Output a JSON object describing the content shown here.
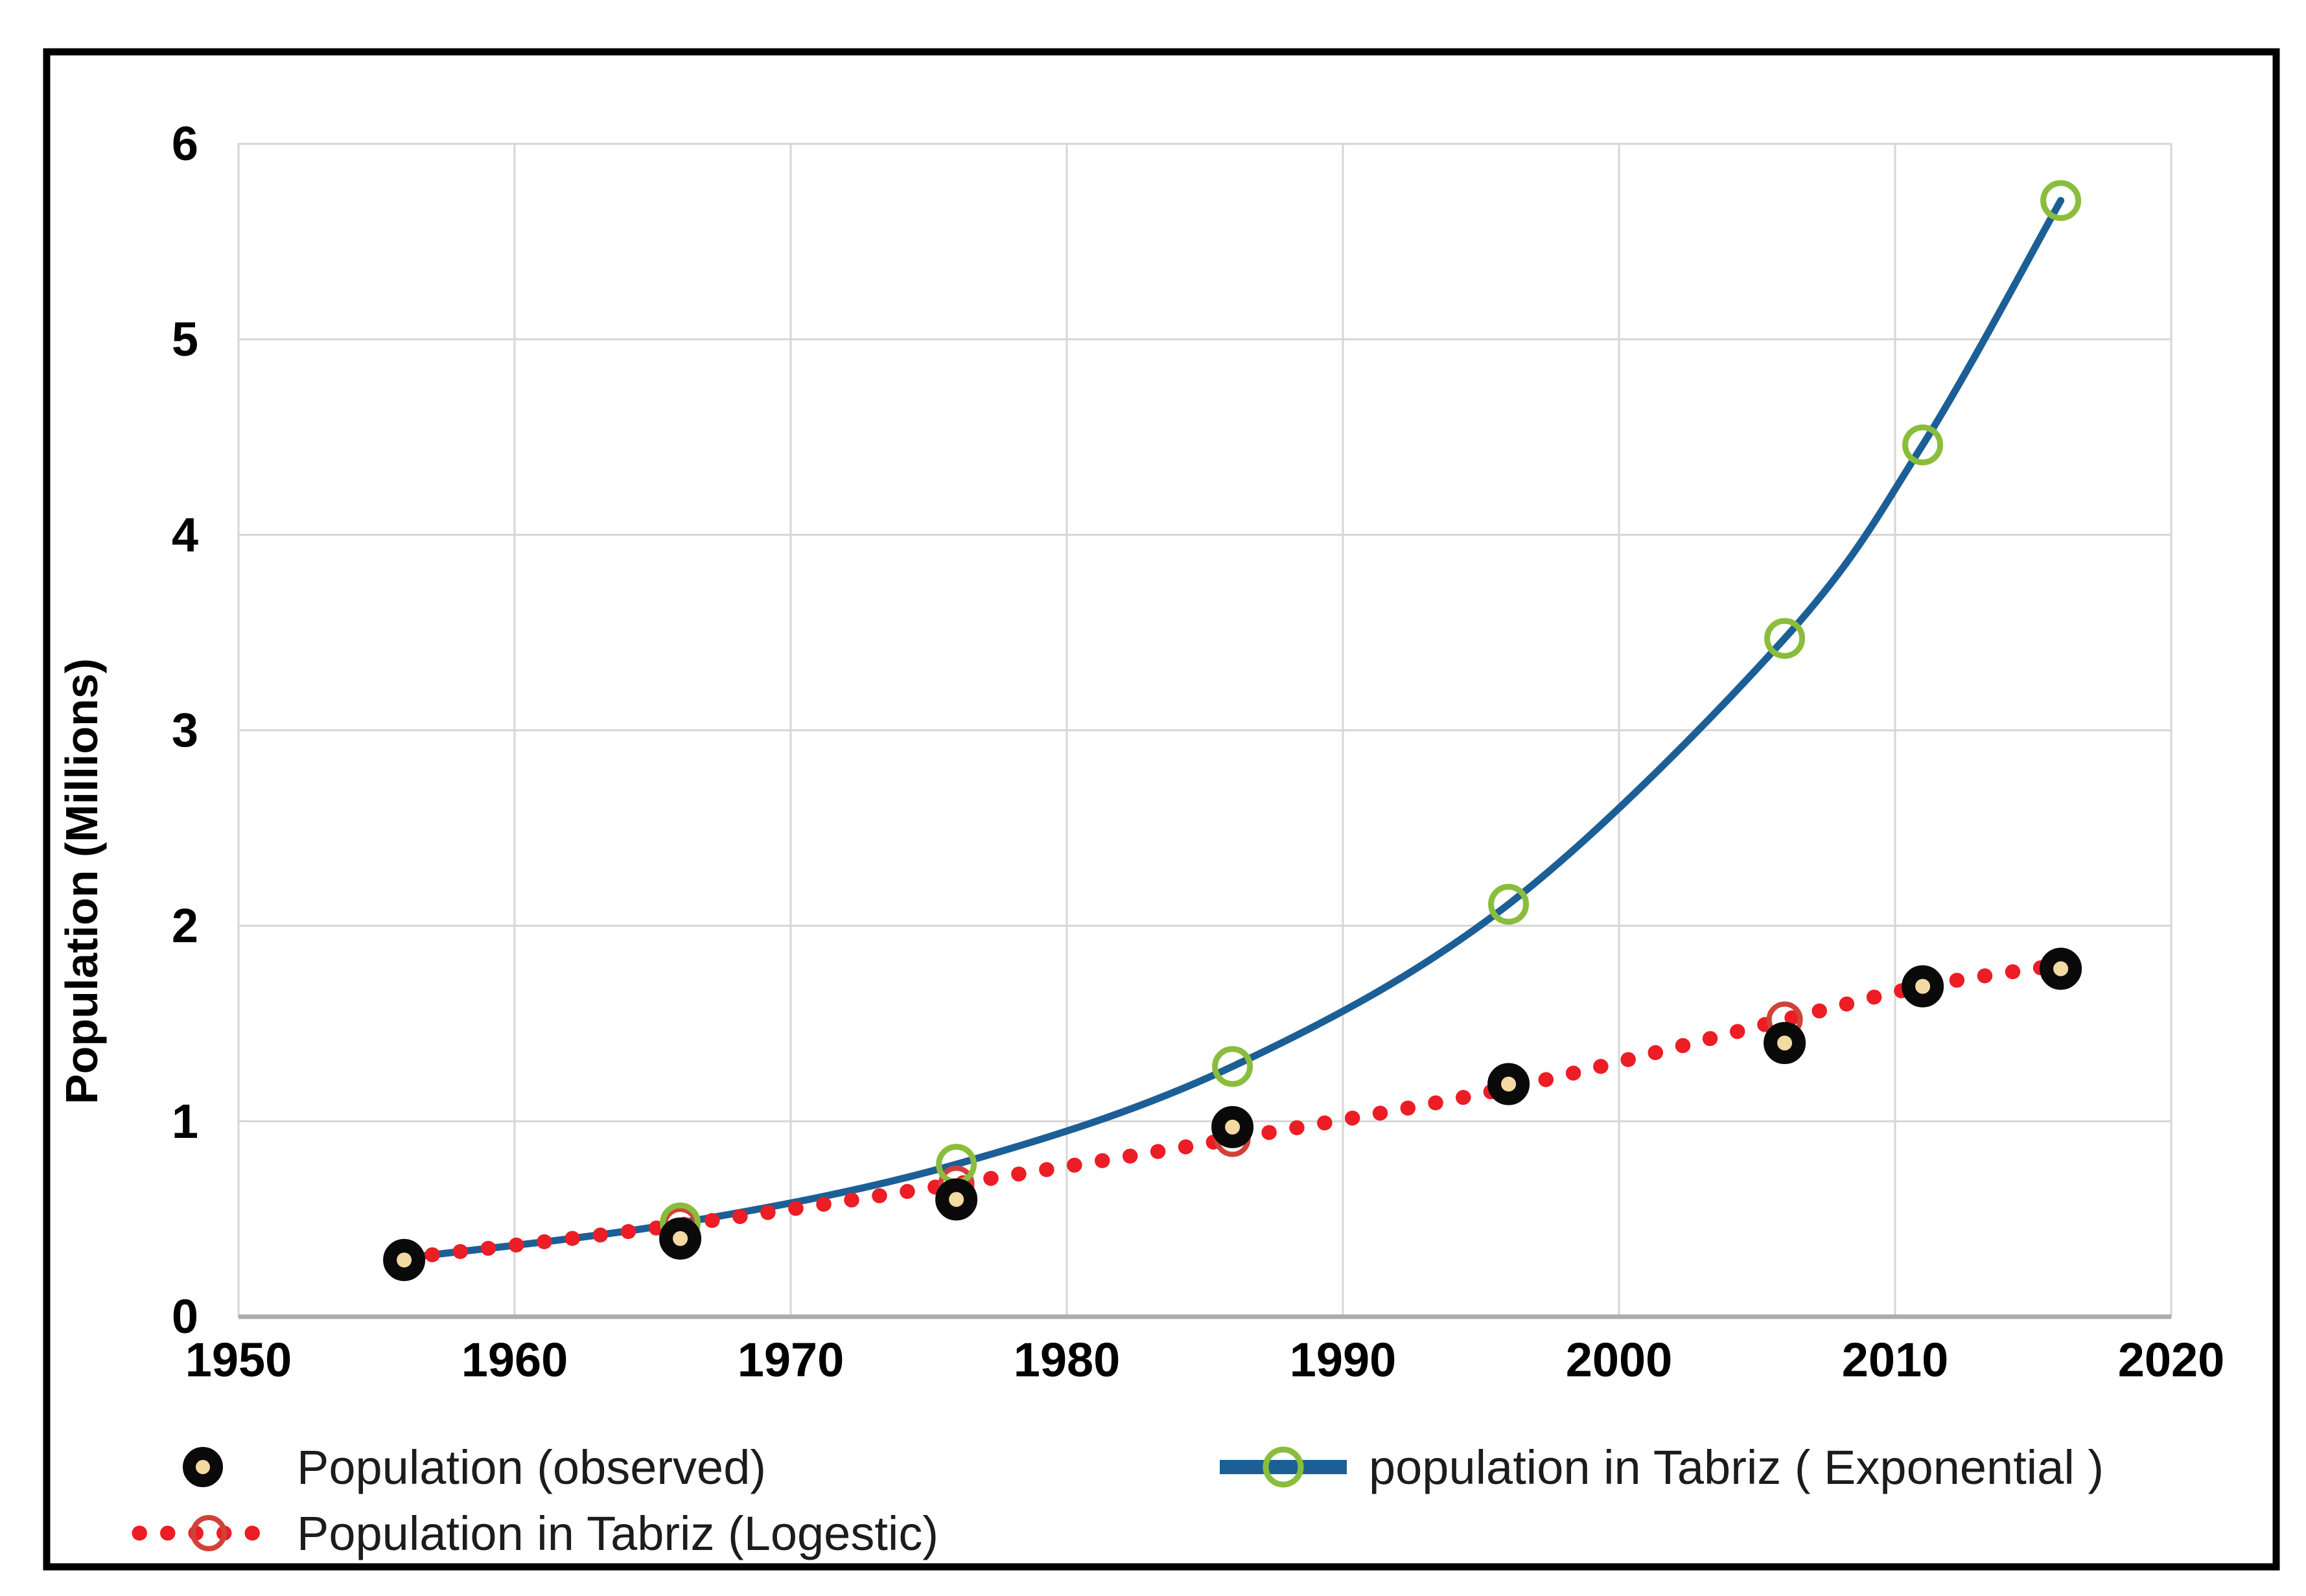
{
  "chart_data": {
    "type": "line",
    "title": "",
    "xlabel": "",
    "ylabel": "Population (Millions)",
    "xlim": [
      1950,
      2020
    ],
    "ylim": [
      0,
      6
    ],
    "grid": true,
    "legend_position": "bottom",
    "x_tick_labels": [
      "1950",
      "1960",
      "1970",
      "1980",
      "1990",
      "2000",
      "2010",
      "2020"
    ],
    "y_tick_labels": [
      "0",
      "1",
      "2",
      "3",
      "4",
      "5",
      "6"
    ],
    "x": [
      1956,
      1966,
      1976,
      1986,
      1996,
      2006,
      2011,
      2016
    ],
    "series": [
      {
        "name": "Population (observed)",
        "type": "scatter",
        "values": [
          0.29,
          0.4,
          0.6,
          0.97,
          1.19,
          1.4,
          1.69,
          1.78
        ],
        "marker": "filled-ring",
        "marker_ring_color": "#0a0a0a",
        "marker_fill_color": "#F3D9A2"
      },
      {
        "name": "population in Tabriz ( Exponential )",
        "type": "smooth-line",
        "values": [
          0.3,
          0.48,
          0.78,
          1.28,
          2.11,
          3.47,
          4.46,
          5.71
        ],
        "line_color": "#1C5F96",
        "marker": "open-circle",
        "marker_color": "#8ABD3C",
        "marker_years": [
          1966,
          1976,
          1986,
          1996,
          2006,
          2011,
          2016
        ]
      },
      {
        "name": "Population in Tabriz (Logestic)",
        "type": "dotted-line",
        "values": [
          0.3,
          0.47,
          0.68,
          0.91,
          1.17,
          1.52,
          1.69,
          1.8
        ],
        "line_color": "#EC1D24",
        "marker": "open-circle",
        "marker_color": "#D04238",
        "marker_years": [
          1966,
          1976,
          1986,
          2006
        ]
      }
    ],
    "colors": {
      "gridline": "#D6D6D6",
      "axis_line": "#ACACAC",
      "figure_border": "#000000",
      "background": "#ffffff"
    }
  },
  "legend": {
    "observed_label": "Population (observed)",
    "exponential_label": "population in Tabriz ( Exponential )",
    "logistic_label": "Population in Tabriz (Logestic)"
  }
}
